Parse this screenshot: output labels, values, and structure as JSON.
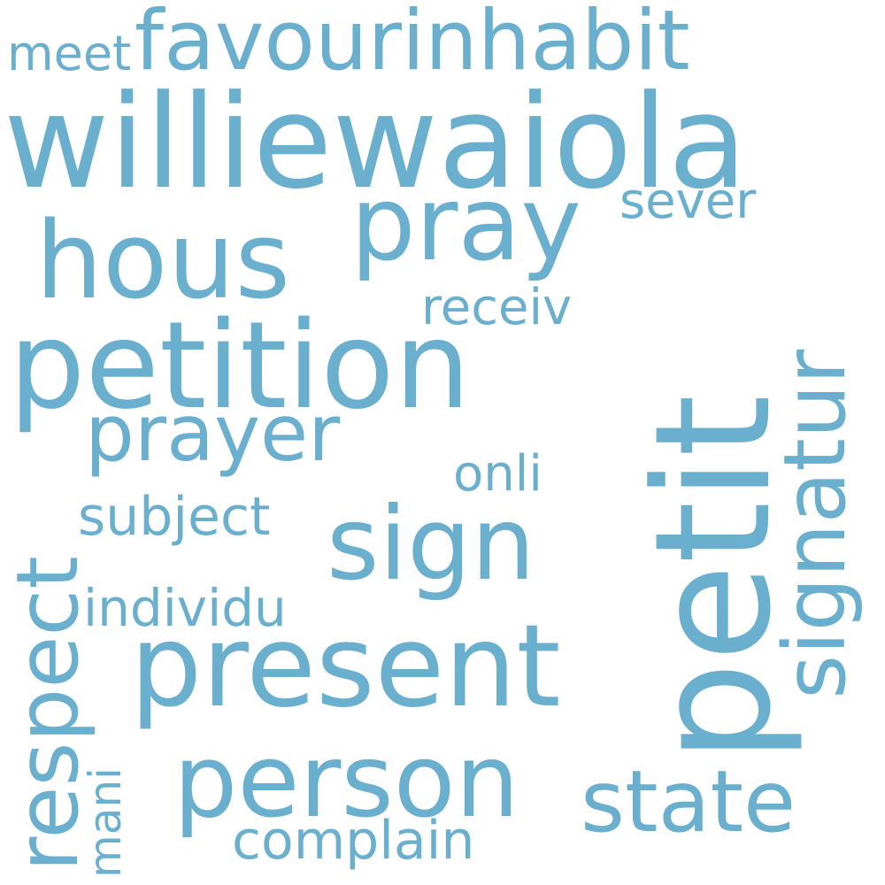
{
  "word_color": "#6aafcd",
  "background_color": "#ffffff",
  "words": {
    "williewaiola": "williewaiola",
    "petit": "petit",
    "petition": "petition",
    "present": "present",
    "hous": "hous",
    "pray": "pray",
    "person": "person",
    "sign": "sign",
    "favourinhabit": "favourinhabit",
    "respect": "respect",
    "signatur": "signatur",
    "prayer": "prayer",
    "state": "state",
    "subject": "subject",
    "complain": "complain",
    "individu": "individu",
    "receiv": "receiv",
    "sever": "sever",
    "onli": "onli",
    "meet": "meet",
    "mani": "mani"
  }
}
